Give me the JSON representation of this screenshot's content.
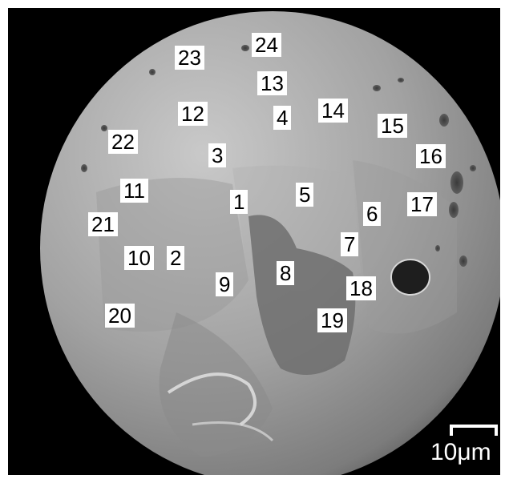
{
  "image": {
    "scale_label": "10μm",
    "colors": {
      "background": "#000000",
      "sphere": "#a4a4a4",
      "label_bg": "#ffffff",
      "label_text": "#000000",
      "scale": "#ffffff"
    }
  },
  "labels": [
    "1",
    "2",
    "3",
    "4",
    "5",
    "6",
    "7",
    "8",
    "9",
    "10",
    "11",
    "12",
    "13",
    "14",
    "15",
    "16",
    "17",
    "18",
    "19",
    "20",
    "21",
    "22",
    "23",
    "24"
  ]
}
